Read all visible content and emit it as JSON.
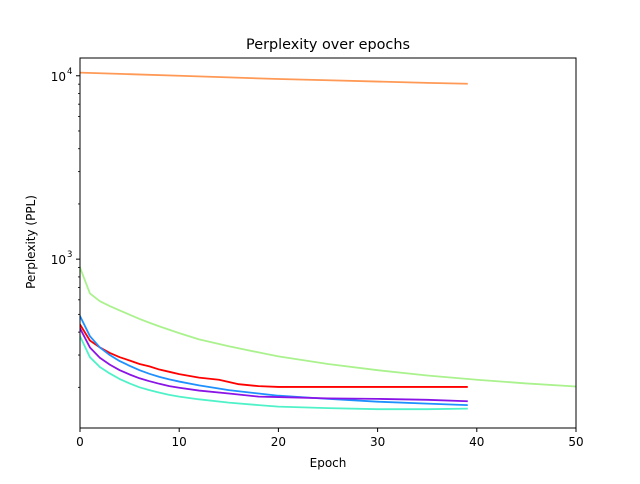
{
  "chart_data": {
    "type": "line",
    "title": "Perplexity over epochs",
    "xlabel": "Epoch",
    "ylabel": "Perplexity (PPL)",
    "xlim": [
      0,
      50
    ],
    "ylim": [
      120,
      12500
    ],
    "y_scale": "log",
    "grid": false,
    "legend": "none",
    "x_ticks": [
      0,
      10,
      20,
      30,
      40,
      50
    ],
    "x_tick_labels": [
      "0",
      "10",
      "20",
      "30",
      "40",
      "50"
    ],
    "y_ticks": [
      1000,
      10000
    ],
    "y_tick_labels": [
      {
        "base": "10",
        "exp": "3"
      },
      {
        "base": "10",
        "exp": "4"
      }
    ],
    "series": [
      {
        "color": "#ff9955",
        "x": [
          0,
          5,
          10,
          15,
          20,
          25,
          30,
          35,
          39
        ],
        "values": [
          10400,
          10200,
          10000,
          9800,
          9600,
          9450,
          9300,
          9150,
          9050
        ]
      },
      {
        "color": "#aaf28d",
        "x": [
          0,
          1,
          2,
          3,
          4,
          5,
          6,
          7,
          8,
          10,
          12,
          15,
          18,
          20,
          25,
          30,
          35,
          40,
          45,
          50
        ],
        "values": [
          900,
          650,
          590,
          555,
          525,
          498,
          472,
          450,
          430,
          395,
          365,
          335,
          310,
          295,
          268,
          248,
          232,
          220,
          210,
          202
        ]
      },
      {
        "color": "#ff0000",
        "x": [
          0,
          1,
          2,
          3,
          4,
          5,
          6,
          7,
          8,
          9,
          10,
          12,
          14,
          16,
          18,
          20,
          25,
          30,
          35,
          39
        ],
        "values": [
          440,
          360,
          330,
          308,
          292,
          280,
          268,
          260,
          250,
          243,
          236,
          226,
          220,
          208,
          203,
          201,
          201,
          201,
          201,
          201
        ]
      },
      {
        "color": "#1e90ff",
        "x": [
          0,
          1,
          2,
          3,
          4,
          5,
          6,
          7,
          8,
          9,
          10,
          12,
          15,
          18,
          20,
          25,
          30,
          35,
          39
        ],
        "values": [
          490,
          380,
          330,
          300,
          278,
          262,
          248,
          237,
          228,
          221,
          215,
          205,
          193,
          185,
          180,
          173,
          167,
          163,
          160
        ]
      },
      {
        "color": "#8a14e6",
        "x": [
          0,
          1,
          2,
          3,
          4,
          5,
          6,
          7,
          8,
          9,
          10,
          12,
          15,
          18,
          20,
          25,
          30,
          35,
          39
        ],
        "values": [
          420,
          330,
          290,
          266,
          248,
          235,
          224,
          216,
          209,
          203,
          199,
          192,
          185,
          178,
          177,
          174,
          173,
          171,
          168
        ]
      },
      {
        "color": "#4ff2c8",
        "x": [
          0,
          1,
          2,
          3,
          4,
          5,
          6,
          7,
          8,
          9,
          10,
          12,
          15,
          18,
          20,
          25,
          30,
          35,
          39
        ],
        "values": [
          380,
          292,
          258,
          238,
          222,
          210,
          200,
          193,
          187,
          182,
          178,
          172,
          165,
          160,
          157,
          154,
          152,
          152,
          153
        ]
      }
    ]
  }
}
